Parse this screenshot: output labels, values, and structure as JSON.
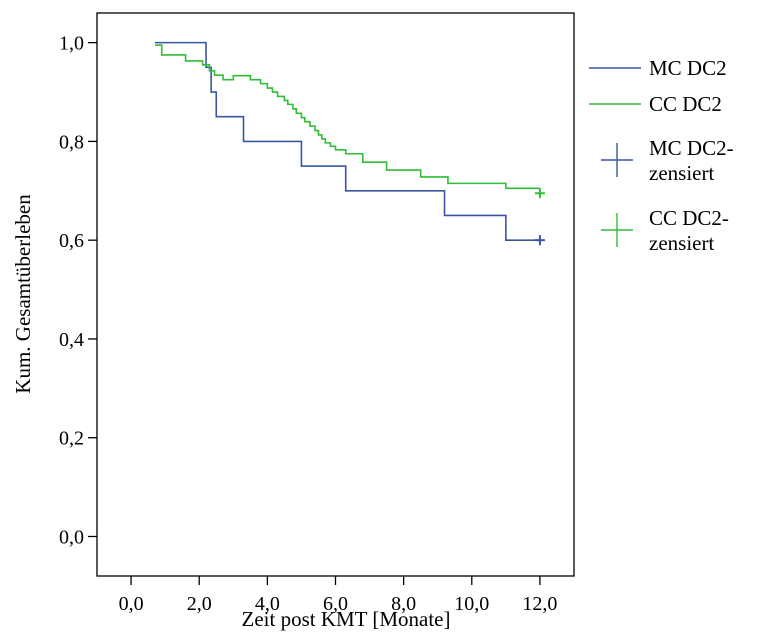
{
  "chart_data": {
    "type": "line",
    "title": "",
    "xlabel": "Zeit post KMT [Monate]",
    "ylabel": "Kum. Gesamtüberleben",
    "xlim": [
      -1.0,
      13.0
    ],
    "ylim": [
      -0.08,
      1.06
    ],
    "x_ticks": [
      0,
      2,
      4,
      6,
      8,
      10,
      12
    ],
    "x_tick_labels": [
      "0,0",
      "2,0",
      "4,0",
      "6,0",
      "8,0",
      "10,0",
      "12,0"
    ],
    "y_ticks": [
      0,
      0.2,
      0.4,
      0.6,
      0.8,
      1.0
    ],
    "y_tick_labels": [
      "0,0",
      "0,2",
      "0,4",
      "0,6",
      "0,8",
      "1,0"
    ],
    "grid": false,
    "legend_position": "right",
    "legend": [
      {
        "label": "MC DC2",
        "kind": "line",
        "color": "#3a55a4"
      },
      {
        "label": "CC DC2",
        "kind": "line",
        "color": "#2fbe35"
      },
      {
        "label": "MC DC2-\nzensiert",
        "kind": "censor",
        "color": "#3a55a4"
      },
      {
        "label": "CC DC2-\nzensiert",
        "kind": "censor",
        "color": "#2fbe35"
      }
    ],
    "series": [
      {
        "name": "MC DC2",
        "color": "#3a55a4",
        "step_times": [
          0.7,
          2.2,
          2.35,
          2.5,
          3.3,
          5.0,
          6.3,
          9.2,
          11.0,
          12.0
        ],
        "survival": [
          1.0,
          0.95,
          0.9,
          0.85,
          0.8,
          0.75,
          0.7,
          0.65,
          0.6,
          0.6
        ],
        "censored": [
          {
            "x": 12.0,
            "y": 0.6
          }
        ]
      },
      {
        "name": "CC DC2",
        "color": "#2fbe35",
        "step_times": [
          0.7,
          0.9,
          1.6,
          2.1,
          2.3,
          2.45,
          2.7,
          3.0,
          3.5,
          3.8,
          4.0,
          4.15,
          4.3,
          4.5,
          4.6,
          4.75,
          4.85,
          5.0,
          5.1,
          5.25,
          5.4,
          5.5,
          5.6,
          5.7,
          5.85,
          6.0,
          6.3,
          6.8,
          7.5,
          8.5,
          9.3,
          11.0,
          12.0
        ],
        "survival": [
          0.995,
          0.975,
          0.963,
          0.955,
          0.943,
          0.934,
          0.925,
          0.933,
          0.925,
          0.917,
          0.908,
          0.9,
          0.891,
          0.883,
          0.875,
          0.866,
          0.857,
          0.848,
          0.84,
          0.831,
          0.822,
          0.813,
          0.805,
          0.797,
          0.79,
          0.783,
          0.775,
          0.758,
          0.742,
          0.728,
          0.715,
          0.705,
          0.705
        ],
        "censored": [
          {
            "x": 12.0,
            "y": 0.695
          }
        ]
      }
    ]
  }
}
